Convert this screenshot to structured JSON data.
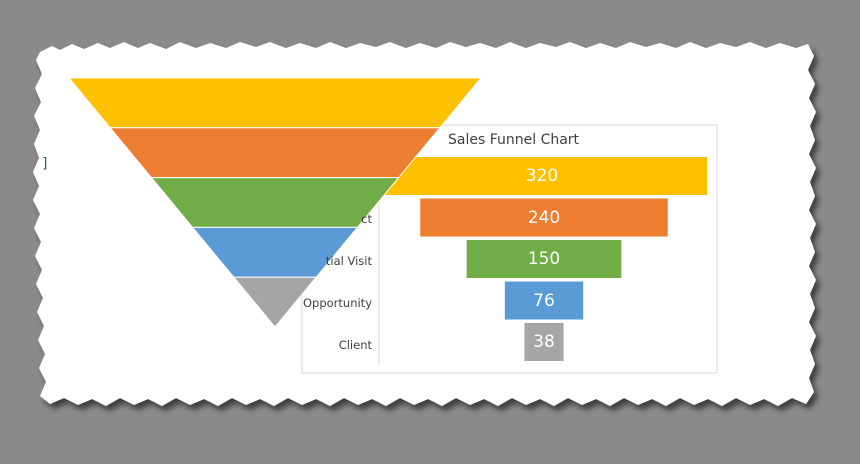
{
  "chart_data": [
    {
      "type": "bar",
      "orientation": "horizontal-funnel",
      "title": "Sales Funnel Chart",
      "categories": [
        "Prospect",
        "Initial Visit",
        "Opportunity",
        "Client",
        "Client"
      ],
      "category_labels_visible": [
        "ct",
        "tial Visit",
        "Opportunity",
        "Client"
      ],
      "values": [
        320,
        240,
        150,
        76,
        38
      ],
      "colors": [
        "#ffc000",
        "#ed7d31",
        "#70ad47",
        "#5b9bd5",
        "#a5a5a5"
      ]
    },
    {
      "type": "area",
      "shape": "inverted-triangle-funnel",
      "segments": 5,
      "colors": [
        "#ffc000",
        "#ed7d31",
        "#70ad47",
        "#5b9bd5",
        "#a5a5a5"
      ]
    }
  ],
  "page": {
    "cell_marker": "]"
  }
}
